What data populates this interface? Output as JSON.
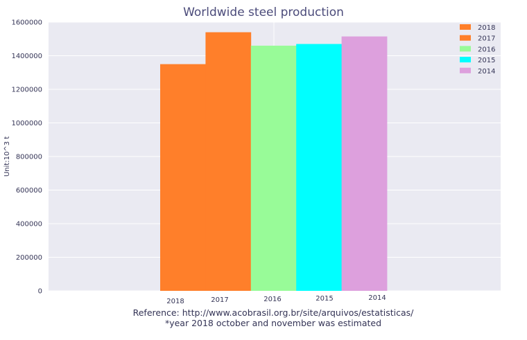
{
  "chart_data": {
    "type": "bar",
    "title": "Worldwide steel production",
    "ylabel": "Unit:10^3 t",
    "xlabel": "",
    "categories": [
      "2018",
      "2017",
      "2016",
      "2015",
      "2014"
    ],
    "values": [
      1350000,
      1540000,
      1460000,
      1470000,
      1515000
    ],
    "colors": [
      "#ff7f2a",
      "#ff7f2a",
      "#98fb98",
      "#00ffff",
      "#dda0dd"
    ],
    "ylim": [
      0,
      1600000
    ],
    "yticks": [
      "0",
      "200000",
      "400000",
      "600000",
      "800000",
      "1000000",
      "1200000",
      "1400000",
      "1600000"
    ],
    "ytick_values": [
      0,
      200000,
      400000,
      600000,
      800000,
      1000000,
      1200000,
      1400000,
      1600000
    ],
    "grid": true,
    "legend": {
      "placement": "top-right",
      "entries": [
        {
          "label": "2018",
          "color": "#ff7f2a"
        },
        {
          "label": "2017",
          "color": "#ff7f2a"
        },
        {
          "label": "2016",
          "color": "#98fb98"
        },
        {
          "label": "2015",
          "color": "#00ffff"
        },
        {
          "label": "2014",
          "color": "#dda0dd"
        }
      ]
    },
    "annotations": [
      "Reference: http://www.acobrasil.org.br/site/arquivos/estatisticas/",
      "*year 2018 october and november was estimated"
    ],
    "background_color": "#eaeaf2",
    "grid_color": "#ffffff"
  }
}
